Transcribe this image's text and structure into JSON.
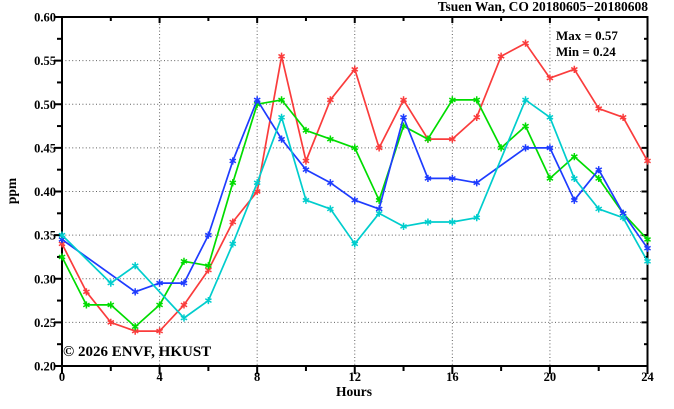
{
  "page": {
    "title": "Tsuen Wan, CO 20180605−20180608",
    "annotations": {
      "max": "Max = 0.57",
      "min": "Min = 0.24"
    },
    "watermark": "© 2026 ENVF, HKUST",
    "xlabel": "Hours",
    "ylabel": "ppm"
  },
  "chart_data": {
    "type": "line",
    "title": "Tsuen Wan, CO 20180605−20180608",
    "xlabel": "Hours",
    "ylabel": "ppm",
    "xlim": [
      0,
      24
    ],
    "ylim": [
      0.2,
      0.6
    ],
    "x_major_ticks": [
      0,
      4,
      8,
      12,
      16,
      20,
      24
    ],
    "x_minor_ticks": [
      2,
      6,
      10,
      14,
      18,
      22
    ],
    "y_major_ticks": [
      0.2,
      0.25,
      0.3,
      0.35,
      0.4,
      0.45,
      0.5,
      0.55,
      0.6
    ],
    "y_minor_step": 0.025,
    "grid": {
      "style": "dotted",
      "x_lines": [
        4,
        8,
        12,
        16,
        20
      ],
      "y_lines": [
        0.25,
        0.3,
        0.35,
        0.4,
        0.45,
        0.5,
        0.55
      ]
    },
    "legend_position": "none",
    "stats": {
      "max": 0.57,
      "min": 0.24
    },
    "x": [
      0,
      1,
      2,
      3,
      4,
      5,
      6,
      7,
      8,
      9,
      10,
      11,
      12,
      13,
      14,
      15,
      16,
      17,
      18,
      19,
      20,
      21,
      22,
      23,
      24
    ],
    "series": [
      {
        "name": "red-series",
        "color": "#fa3c3c",
        "values": [
          0.34,
          0.285,
          0.25,
          0.24,
          0.24,
          0.27,
          0.31,
          0.365,
          0.4,
          0.555,
          0.435,
          0.505,
          0.54,
          0.45,
          0.505,
          0.46,
          0.46,
          0.485,
          0.555,
          0.57,
          0.53,
          0.54,
          0.495,
          0.485,
          0.435
        ]
      },
      {
        "name": "green-series",
        "color": "#00dc00",
        "values": [
          0.325,
          0.27,
          0.27,
          0.245,
          0.27,
          0.32,
          0.315,
          0.41,
          0.5,
          0.505,
          0.47,
          0.46,
          0.45,
          0.39,
          0.475,
          0.46,
          0.505,
          0.505,
          0.45,
          0.475,
          0.415,
          0.44,
          0.415,
          0.375,
          0.345
        ]
      },
      {
        "name": "blue-series",
        "color": "#1e3cff",
        "values": [
          0.345,
          null,
          null,
          0.285,
          0.295,
          0.295,
          0.35,
          0.435,
          0.505,
          0.46,
          0.425,
          0.41,
          0.39,
          0.38,
          0.485,
          0.415,
          0.415,
          0.41,
          null,
          0.45,
          0.45,
          0.39,
          0.425,
          0.375,
          0.335
        ]
      },
      {
        "name": "cyan-series",
        "color": "#00cdcd",
        "values": [
          0.35,
          null,
          0.295,
          0.315,
          null,
          0.255,
          0.275,
          0.34,
          0.41,
          0.485,
          0.39,
          0.38,
          0.34,
          0.375,
          0.36,
          0.365,
          0.365,
          0.37,
          null,
          0.505,
          0.485,
          0.415,
          0.38,
          0.37,
          0.32
        ]
      }
    ]
  },
  "styles": {
    "background": "#ffffff",
    "axis_color": "#000000",
    "grid_color": "#606060",
    "watermark_color": "#d8d8d8"
  }
}
